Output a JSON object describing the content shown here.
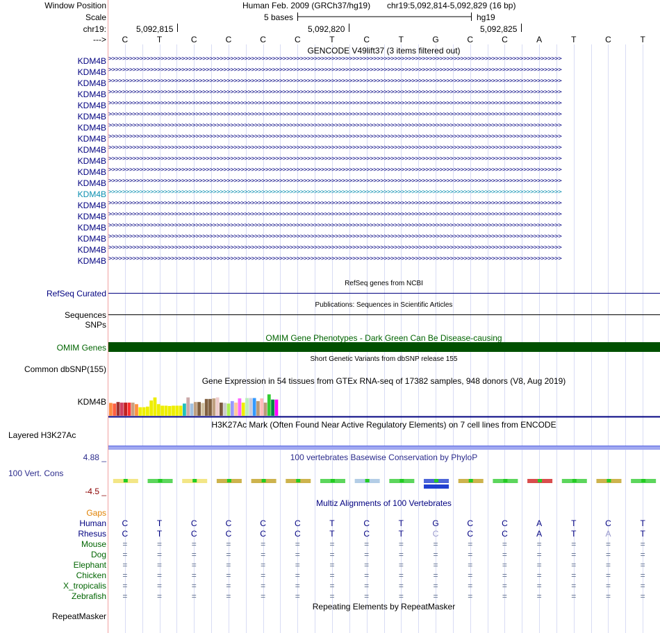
{
  "header": {
    "window_position_label": "Window Position",
    "scale_label": "Scale",
    "chrom_label": "chr19:",
    "strand_label": "--->",
    "assembly": "Human Feb. 2009 (GRCh37/hg19)",
    "position": "chr19:5,092,814-5,092,829 (16 bp)",
    "scale_text": "5 bases",
    "db_label": "hg19",
    "coords": [
      "5,092,815",
      "5,092,820",
      "5,092,825"
    ]
  },
  "bases": [
    "C",
    "T",
    "C",
    "C",
    "C",
    "C",
    "T",
    "C",
    "T",
    "G",
    "C",
    "C",
    "A",
    "T",
    "C",
    "T"
  ],
  "gencode": {
    "title": "GENCODE V49lift37 (3 items filtered out)",
    "gene_labels": [
      "KDM4B",
      "KDM4B",
      "KDM4B",
      "KDM4B",
      "KDM4B",
      "KDM4B",
      "KDM4B",
      "KDM4B",
      "KDM4B",
      "KDM4B",
      "KDM4B",
      "KDM4B",
      "KDM4B",
      "KDM4B",
      "KDM4B",
      "KDM4B",
      "KDM4B",
      "KDM4B",
      "KDM4B"
    ],
    "highlighted_index": 12
  },
  "refseq": {
    "title": "RefSeq genes from NCBI",
    "label": "RefSeq Curated"
  },
  "publications": {
    "title": "Publications: Sequences in Scientific Articles",
    "label": "Sequences"
  },
  "snps": {
    "label": "SNPs"
  },
  "omim": {
    "title": "OMIM Gene Phenotypes - Dark Green Can Be Disease-causing",
    "label": "OMIM Genes",
    "color": "#005000"
  },
  "dbsnp": {
    "title": "Short Genetic Variants from dbSNP release 155",
    "label": "Common dbSNP(155)"
  },
  "gtex": {
    "title": "Gene Expression in 54 tissues from GTEx RNA-seq of 17382 samples, 948 donors (V8, Aug 2019)",
    "label": "KDM4B",
    "bars": [
      {
        "c": "#ff8c40",
        "v": 0.42
      },
      {
        "c": "#ff6040",
        "v": 0.4
      },
      {
        "c": "#a03030",
        "v": 0.45
      },
      {
        "c": "#d04060",
        "v": 0.43
      },
      {
        "c": "#c02020",
        "v": 0.43
      },
      {
        "c": "#ff3030",
        "v": 0.43
      },
      {
        "c": "#c8a080",
        "v": 0.43
      },
      {
        "c": "#ff9040",
        "v": 0.38
      },
      {
        "c": "#eeee00",
        "v": 0.28
      },
      {
        "c": "#eeee00",
        "v": 0.28
      },
      {
        "c": "#eeee00",
        "v": 0.3
      },
      {
        "c": "#eeee00",
        "v": 0.5
      },
      {
        "c": "#eeee00",
        "v": 0.6
      },
      {
        "c": "#eeee00",
        "v": 0.38
      },
      {
        "c": "#eeee00",
        "v": 0.33
      },
      {
        "c": "#eeee00",
        "v": 0.33
      },
      {
        "c": "#eeee00",
        "v": 0.32
      },
      {
        "c": "#eeee00",
        "v": 0.33
      },
      {
        "c": "#eeee00",
        "v": 0.33
      },
      {
        "c": "#eeee00",
        "v": 0.33
      },
      {
        "c": "#20c0c0",
        "v": 0.4
      },
      {
        "c": "#ccaaaa",
        "v": 0.6
      },
      {
        "c": "#a0c0e0",
        "v": 0.4
      },
      {
        "c": "#c0a080",
        "v": 0.45
      },
      {
        "c": "#806040",
        "v": 0.45
      },
      {
        "c": "#d0c0a0",
        "v": 0.42
      },
      {
        "c": "#806040",
        "v": 0.55
      },
      {
        "c": "#806040",
        "v": 0.55
      },
      {
        "c": "#c0a080",
        "v": 0.57
      },
      {
        "c": "#eecccc",
        "v": 0.6
      },
      {
        "c": "#7c5a40",
        "v": 0.43
      },
      {
        "c": "#cccccc",
        "v": 0.42
      },
      {
        "c": "#aaee55",
        "v": 0.4
      },
      {
        "c": "#9999ff",
        "v": 0.48
      },
      {
        "c": "#ffcc99",
        "v": 0.43
      },
      {
        "c": "#ff66ff",
        "v": 0.57
      },
      {
        "c": "#eeee00",
        "v": 0.43
      },
      {
        "c": "#bbeebb",
        "v": 0.58
      },
      {
        "c": "#ccccdd",
        "v": 0.58
      },
      {
        "c": "#3399ff",
        "v": 0.58
      },
      {
        "c": "#bb9977",
        "v": 0.48
      },
      {
        "c": "#ffbbbb",
        "v": 0.57
      },
      {
        "c": "#bb9977",
        "v": 0.43
      },
      {
        "c": "#33cc33",
        "v": 0.7
      },
      {
        "c": "#008844",
        "v": 0.53
      },
      {
        "c": "#ff00ff",
        "v": 0.53
      }
    ]
  },
  "h3k27ac": {
    "title": "H3K27Ac Mark (Often Found Near Active Regulatory Elements) on 7 cell lines from ENCODE",
    "label": "Layered H3K27Ac"
  },
  "conservation": {
    "title": "100 vertebrates Basewise Conservation by PhyloP",
    "label": "100 Vert. Cons",
    "max": "4.88 _",
    "min": "-4.5 _"
  },
  "multiz": {
    "title": "Multiz Alignments of 100 Vertebrates",
    "gaps_label": "Gaps",
    "species": [
      {
        "name": "Human",
        "row": [
          "C",
          "T",
          "C",
          "C",
          "C",
          "C",
          "T",
          "C",
          "T",
          "G",
          "C",
          "C",
          "A",
          "T",
          "C",
          "T"
        ]
      },
      {
        "name": "Rhesus",
        "row": [
          "C",
          "T",
          "C",
          "C",
          "C",
          "C",
          "T",
          "C",
          "T",
          "C",
          "C",
          "C",
          "A",
          "T",
          "A",
          "T"
        ]
      },
      {
        "name": "Mouse",
        "row": [
          "=",
          "=",
          "=",
          "=",
          "=",
          "=",
          "=",
          "=",
          "=",
          "=",
          "=",
          "=",
          "=",
          "=",
          "=",
          "="
        ]
      },
      {
        "name": "Dog",
        "row": [
          "=",
          "=",
          "=",
          "=",
          "=",
          "=",
          "=",
          "=",
          "=",
          "=",
          "=",
          "=",
          "=",
          "=",
          "=",
          "="
        ]
      },
      {
        "name": "Elephant",
        "row": [
          "=",
          "=",
          "=",
          "=",
          "=",
          "=",
          "=",
          "=",
          "=",
          "=",
          "=",
          "=",
          "=",
          "=",
          "=",
          "="
        ]
      },
      {
        "name": "Chicken",
        "row": [
          "=",
          "=",
          "=",
          "=",
          "=",
          "=",
          "=",
          "=",
          "=",
          "=",
          "=",
          "=",
          "=",
          "=",
          "=",
          "="
        ]
      },
      {
        "name": "X_tropicalis",
        "row": [
          "=",
          "=",
          "=",
          "=",
          "=",
          "=",
          "=",
          "=",
          "=",
          "=",
          "=",
          "=",
          "=",
          "=",
          "=",
          "="
        ]
      },
      {
        "name": "Zebrafish",
        "row": [
          "=",
          "=",
          "=",
          "=",
          "=",
          "=",
          "=",
          "=",
          "=",
          "=",
          "=",
          "=",
          "=",
          "=",
          "=",
          "="
        ]
      }
    ]
  },
  "repeatmasker": {
    "title": "Repeating Elements by RepeatMasker",
    "label": "RepeatMasker"
  }
}
